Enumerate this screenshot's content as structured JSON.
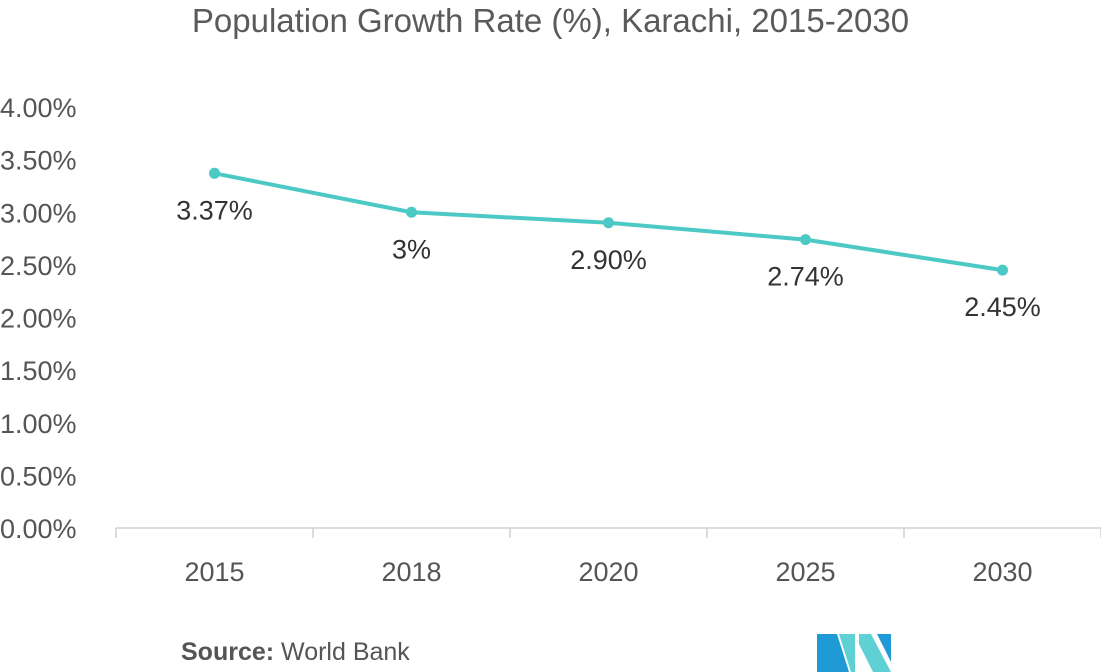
{
  "chart_data": {
    "type": "line",
    "title": "Population Growth Rate (%), Karachi, 2015-2030",
    "categories": [
      "2015",
      "2018",
      "2020",
      "2025",
      "2030"
    ],
    "series": [
      {
        "values": [
          3.37,
          3.0,
          2.9,
          2.74,
          2.45
        ],
        "labels": [
          "3.37%",
          "3%",
          "2.90%",
          "2.74%",
          "2.45%"
        ],
        "color": "#4cc9c5"
      }
    ],
    "y_ticks": [
      "0.00%",
      "0.50%",
      "1.00%",
      "1.50%",
      "2.00%",
      "2.50%",
      "3.00%",
      "3.50%",
      "4.00%"
    ],
    "ylim": [
      0,
      4
    ],
    "xlabel": "",
    "ylabel": "",
    "grid": false,
    "legend": "none",
    "axis_color": "#d0d0d0"
  },
  "source": {
    "label": "Source:",
    "text": "World Bank"
  },
  "logo": {
    "icon": "mordor-intelligence-logo-icon",
    "colors": [
      "#1f9ad6",
      "#5fd0d4"
    ]
  }
}
